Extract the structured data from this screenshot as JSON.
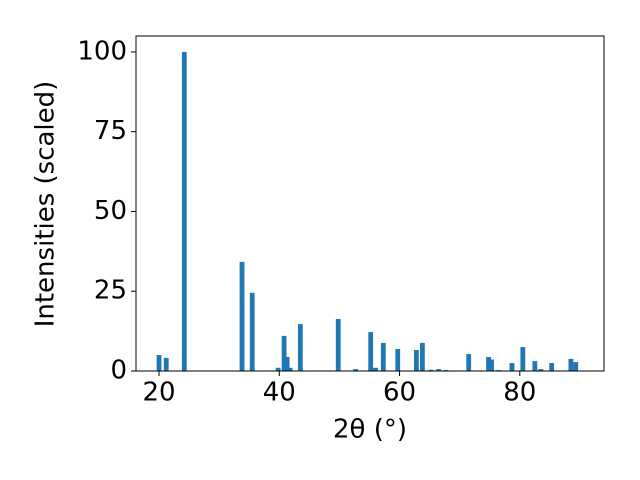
{
  "chart_data": {
    "type": "bar",
    "xlabel": "2θ (°)",
    "ylabel": "Intensities (scaled)",
    "x": [
      20.0,
      21.2,
      24.2,
      33.8,
      35.5,
      39.8,
      40.8,
      41.3,
      41.8,
      43.5,
      49.8,
      52.7,
      55.2,
      56.0,
      57.3,
      59.7,
      62.8,
      63.8,
      65.2,
      66.5,
      67.7,
      71.5,
      74.8,
      75.3,
      76.5,
      78.7,
      80.5,
      82.5,
      83.5,
      85.3,
      88.5,
      89.3
    ],
    "values": [
      5.0,
      4.1,
      100,
      34.2,
      24.5,
      1.0,
      11,
      4.4,
      1.0,
      14.7,
      16.3,
      0.6,
      12.2,
      1.0,
      8.8,
      6.9,
      6.6,
      8.8,
      0.4,
      0.6,
      0.3,
      5.3,
      4.4,
      3.6,
      0.3,
      2.5,
      7.5,
      3.1,
      0.6,
      2.5,
      3.8,
      2.8
    ],
    "color": "#1f77b4",
    "bar_width": 0.8,
    "xlim": [
      16.17,
      94.0
    ],
    "xticks": [
      20,
      40,
      60,
      80
    ],
    "ylim": [
      0,
      105
    ],
    "yticks": [
      0,
      25,
      50,
      75,
      100
    ]
  }
}
